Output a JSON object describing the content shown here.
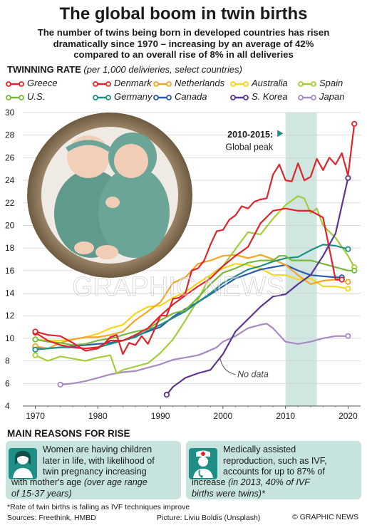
{
  "header": {
    "title": "The global boom in twin births",
    "subtitle_lines": [
      "The number of twins being born in developed countries has risen",
      "dramatically since 1970 – increasing by an average of 42%",
      "compared to an overall rise of 8% in all deliveries"
    ],
    "rate_label": "TWINNING RATE",
    "rate_unit": "(per 1,000 delivieries, select countries)"
  },
  "chart_data": {
    "type": "line",
    "xlim": [
      1968,
      2022
    ],
    "ylim": [
      4,
      30
    ],
    "x_ticks": [
      1970,
      1980,
      1990,
      2000,
      2010,
      2020
    ],
    "y_ticks": [
      4,
      6,
      8,
      10,
      12,
      14,
      16,
      18,
      20,
      22,
      24,
      26,
      28,
      30
    ],
    "grid": true,
    "shaded_period": [
      2010,
      2015
    ],
    "peak_annotation": {
      "line1": "2010-2015:",
      "line2": "Global peak"
    },
    "no_data_label": "No data",
    "series": [
      {
        "name": "Greece",
        "color": "#e0242b",
        "x": [
          1970,
          1972,
          1974,
          1976,
          1978,
          1980,
          1981,
          1982,
          1983,
          1984,
          1985,
          1986,
          1987,
          1988,
          1989,
          1990,
          1991,
          1992,
          1993,
          1994,
          1995,
          1996,
          1997,
          1998,
          1999,
          2000,
          2001,
          2002,
          2003,
          2004,
          2005,
          2006,
          2007,
          2008,
          2009,
          2010,
          2011,
          2012,
          2013,
          2014,
          2015,
          2016,
          2017,
          2018,
          2019,
          2020,
          2021
        ],
        "values": [
          10.6,
          10.3,
          10.2,
          9.6,
          8.9,
          9.1,
          9.5,
          10.1,
          10.3,
          8.6,
          9.6,
          9.4,
          10.2,
          9.5,
          10.7,
          12,
          12,
          13.5,
          13.6,
          14,
          16,
          16.2,
          16.9,
          18.3,
          19.5,
          19.6,
          20.5,
          20.9,
          21.7,
          21.5,
          22.1,
          22.3,
          22.4,
          24.5,
          25.4,
          24,
          23.9,
          25.5,
          24,
          24.3,
          25.9,
          24.9,
          26,
          25.4,
          26.4,
          24.4,
          29
        ]
      },
      {
        "name": "U.S.",
        "color": "#7ab83c",
        "x": [
          1970,
          1972,
          1974,
          1976,
          1978,
          1980,
          1982,
          1983,
          1984,
          1986,
          1988,
          1990,
          1992,
          1994,
          1996,
          1998,
          2000,
          2002,
          2004,
          2006,
          2008,
          2009,
          2010,
          2011,
          2012,
          2014,
          2016,
          2018,
          2020,
          2021
        ],
        "values": [
          9.9,
          9.7,
          9.6,
          9.4,
          9.5,
          9.8,
          10,
          10.1,
          10.3,
          10.6,
          10.8,
          11.6,
          12.2,
          12.5,
          13.6,
          14.8,
          15.8,
          16.2,
          16.7,
          16.9,
          16.9,
          17.3,
          17.3,
          16.9,
          16.9,
          16.9,
          16.6,
          16.3,
          16,
          16
        ]
      },
      {
        "name": "Denmark",
        "color": "#e0242b",
        "x": [
          1970,
          1972,
          1974,
          1976,
          1978,
          1980,
          1982,
          1984,
          1986,
          1988,
          1990,
          1992,
          1994,
          1996,
          1998,
          2000,
          2002,
          2004,
          2006,
          2008,
          2010,
          2012,
          2014,
          2016,
          2018,
          2019
        ],
        "values": [
          10.5,
          9.8,
          9.4,
          9.2,
          9.1,
          9.2,
          9.8,
          9.8,
          10.3,
          10.9,
          12,
          13,
          13.8,
          14.6,
          15.3,
          16.4,
          17.3,
          18.1,
          20.2,
          21.3,
          21.5,
          21.3,
          21.3,
          20.7,
          15.2,
          15.2
        ]
      },
      {
        "name": "Germany",
        "color": "#1f8f85",
        "x": [
          1970,
          1972,
          1974,
          1976,
          1978,
          1980,
          1982,
          1984,
          1986,
          1988,
          1990,
          1992,
          1994,
          1996,
          1998,
          2000,
          2002,
          2004,
          2006,
          2008,
          2010,
          2012,
          2014,
          2016,
          2018,
          2020
        ],
        "values": [
          9,
          9.1,
          9.2,
          9.2,
          9.1,
          9.2,
          9.5,
          9.8,
          10.1,
          10.7,
          11.2,
          11.8,
          12.4,
          13.2,
          14,
          14.9,
          15.5,
          16.1,
          16.4,
          16.8,
          17.1,
          17.2,
          17.8,
          18.3,
          18.2,
          17.9
        ]
      },
      {
        "name": "Netherlands",
        "color": "#f2a628",
        "x": [
          1970,
          1972,
          1974,
          1976,
          1978,
          1980,
          1982,
          1984,
          1986,
          1988,
          1990,
          1992,
          1994,
          1996,
          1998,
          2000,
          2002,
          2004,
          2006,
          2008,
          2010,
          2012,
          2014,
          2016,
          2018,
          2020
        ],
        "values": [
          9.3,
          9.1,
          9.6,
          9.9,
          10.1,
          10.1,
          10.3,
          10.6,
          11.6,
          12.4,
          13.2,
          14.9,
          15.4,
          16.6,
          16.9,
          17.3,
          17.4,
          17.1,
          17.4,
          17,
          16.5,
          15.6,
          14.8,
          15.1,
          15.2,
          15
        ]
      },
      {
        "name": "Canada",
        "color": "#2a5aa8",
        "x": [
          1970,
          1972,
          1974,
          1976,
          1978,
          1980,
          1982,
          1984,
          1986,
          1988,
          1990,
          1992,
          1994,
          1996,
          1998,
          2000,
          2002,
          2004,
          2006,
          2008,
          2010,
          2012,
          2014,
          2016,
          2018,
          2019
        ],
        "values": [
          9.2,
          9.1,
          9.2,
          9.3,
          9.4,
          9.5,
          9.6,
          9.8,
          10.2,
          10.6,
          11,
          11.9,
          12.6,
          13.2,
          13.9,
          14.6,
          15.3,
          15.7,
          16.1,
          16.3,
          16.5,
          16,
          15.6,
          15.5,
          15.4,
          15.4
        ]
      },
      {
        "name": "Australia",
        "color": "#f6d71c",
        "x": [
          1970,
          1972,
          1974,
          1976,
          1978,
          1980,
          1982,
          1984,
          1986,
          1988,
          1990,
          1992,
          1994,
          1996,
          1998,
          2000,
          2002,
          2004,
          2006,
          2008,
          2010,
          2012,
          2014,
          2016,
          2018,
          2020
        ],
        "values": [
          9.9,
          9.8,
          9.8,
          9.9,
          10.1,
          10.4,
          10.9,
          11.2,
          12.2,
          12.8,
          12.9,
          13.6,
          14.1,
          14.9,
          15.6,
          16.2,
          16.6,
          16.5,
          16.2,
          15.6,
          15.6,
          15.2,
          15.3,
          14.6,
          14.6,
          14.4
        ]
      },
      {
        "name": "S. Korea",
        "color": "#5b3590",
        "x": [
          1991,
          1992,
          1994,
          1996,
          1998,
          1999,
          2000,
          2002,
          2004,
          2006,
          2008,
          2010,
          2012,
          2014,
          2016,
          2018,
          2020
        ],
        "values": [
          5,
          5.7,
          6.5,
          6.9,
          7.2,
          7.9,
          8.6,
          10.6,
          11.7,
          12.8,
          13.7,
          13.9,
          14.8,
          15.6,
          17.3,
          19.3,
          24.2
        ]
      },
      {
        "name": "Spain",
        "color": "#a3cd39",
        "x": [
          1970,
          1972,
          1974,
          1976,
          1978,
          1980,
          1982,
          1983,
          1984,
          1986,
          1988,
          1990,
          1992,
          1994,
          1996,
          1998,
          2000,
          2002,
          2004,
          2006,
          2008,
          2010,
          2012,
          2013,
          2014,
          2015,
          2016,
          2018,
          2020,
          2021
        ],
        "values": [
          8.5,
          8,
          8.4,
          8.2,
          8,
          8.3,
          8.5,
          6.9,
          7.2,
          7.5,
          7.8,
          8.7,
          9.9,
          11.6,
          13.4,
          15.6,
          16.4,
          17.9,
          19.4,
          19.2,
          20.6,
          21.8,
          22.6,
          22.4,
          21.1,
          21.5,
          20,
          18.9,
          17.3,
          16.3
        ]
      },
      {
        "name": "Japan",
        "color": "#a78ac2",
        "x": [
          1974,
          1976,
          1978,
          1980,
          1982,
          1984,
          1986,
          1988,
          1990,
          1992,
          1994,
          1996,
          1997,
          1999,
          2000,
          2002,
          2004,
          2006,
          2007,
          2008,
          2010,
          2012,
          2014,
          2016,
          2018,
          2020
        ],
        "values": [
          5.9,
          6,
          6.2,
          6.5,
          6.8,
          7,
          7.1,
          7.4,
          7.7,
          8.1,
          8.3,
          8.5,
          8.7,
          9.2,
          9.7,
          10.2,
          10.9,
          11.2,
          11.3,
          10.9,
          9.7,
          9.5,
          9.7,
          10,
          10.2,
          10.2
        ]
      }
    ]
  },
  "reasons": {
    "title": "MAIN REASONS FOR RISE",
    "card1_lines": [
      "Women are having children",
      "later in life, with likelihood of",
      "twin pregnancy increasing",
      "with mother's age"
    ],
    "card1_italic": "(over age range",
    "card1_italic2": "of 15-37 years)",
    "card2_lines": [
      "Medically assisted",
      "reproduction, such as IVF,",
      "accounts for up to 87% of",
      "increase"
    ],
    "card2_italic": "(in 2013, 40% of IVF",
    "card2_italic2": "births were twins)*"
  },
  "footer": {
    "note": "*Rate of twin births is falling as IVF techniques improve",
    "sources": "Sources: Freethink, HMBD",
    "picture": "Picture: Liviu Boldis (Unsplash)",
    "brand": "© GRAPHIC NEWS"
  },
  "watermark": "GRAPHIC NEWS"
}
